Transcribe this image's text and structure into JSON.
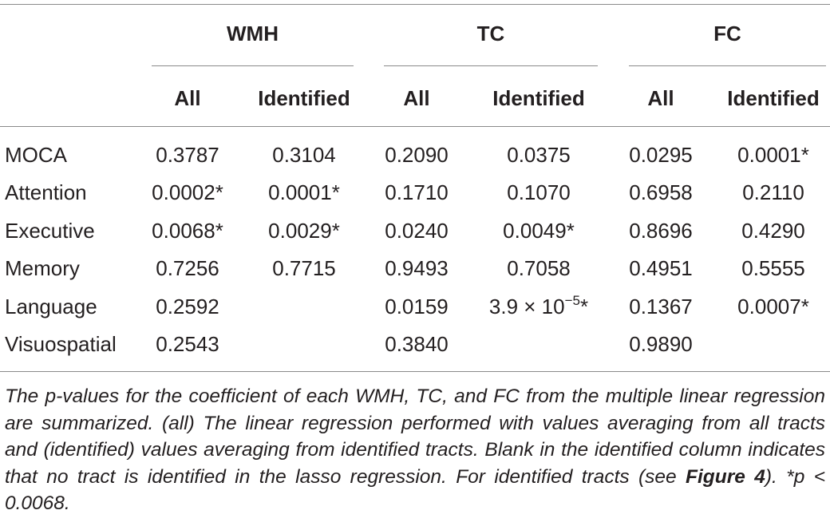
{
  "table": {
    "groups": [
      "WMH",
      "TC",
      "FC"
    ],
    "columns": [
      "All",
      "Identified",
      "All",
      "Identified",
      "All",
      "Identified"
    ],
    "rows": [
      {
        "label": "MOCA",
        "cells": [
          "0.3787",
          "0.3104",
          "0.2090",
          "0.0375",
          "0.0295",
          "0.0001*"
        ]
      },
      {
        "label": "Attention",
        "cells": [
          "0.0002*",
          "0.0001*",
          "0.1710",
          "0.1070",
          "0.6958",
          "0.2110"
        ]
      },
      {
        "label": "Executive",
        "cells": [
          "0.0068*",
          "0.0029*",
          "0.0240",
          "0.0049*",
          "0.8696",
          "0.4290"
        ]
      },
      {
        "label": "Memory",
        "cells": [
          "0.7256",
          "0.7715",
          "0.9493",
          "0.7058",
          "0.4951",
          "0.5555"
        ]
      },
      {
        "label": "Language",
        "cells": [
          "0.2592",
          null,
          "0.0159",
          {
            "text": "3.9 × 10",
            "sup": "−5",
            "suffix": "*"
          },
          "0.1367",
          "0.0007*"
        ]
      },
      {
        "label": "Visuospatial",
        "cells": [
          "0.2543",
          null,
          "0.3840",
          null,
          "0.9890",
          null
        ]
      }
    ]
  },
  "caption": {
    "before": "The p-values for the coefficient of each WMH, TC, and FC from the multiple linear regression are summarized. (all) The linear regression performed with values averaging from all tracts and (identified) values averaging from identified tracts. Blank in the identified column indicates that no tract is identified in the lasso regression. For identified tracts (see ",
    "figure": "Figure 4",
    "after": "). *p < 0.0068."
  }
}
